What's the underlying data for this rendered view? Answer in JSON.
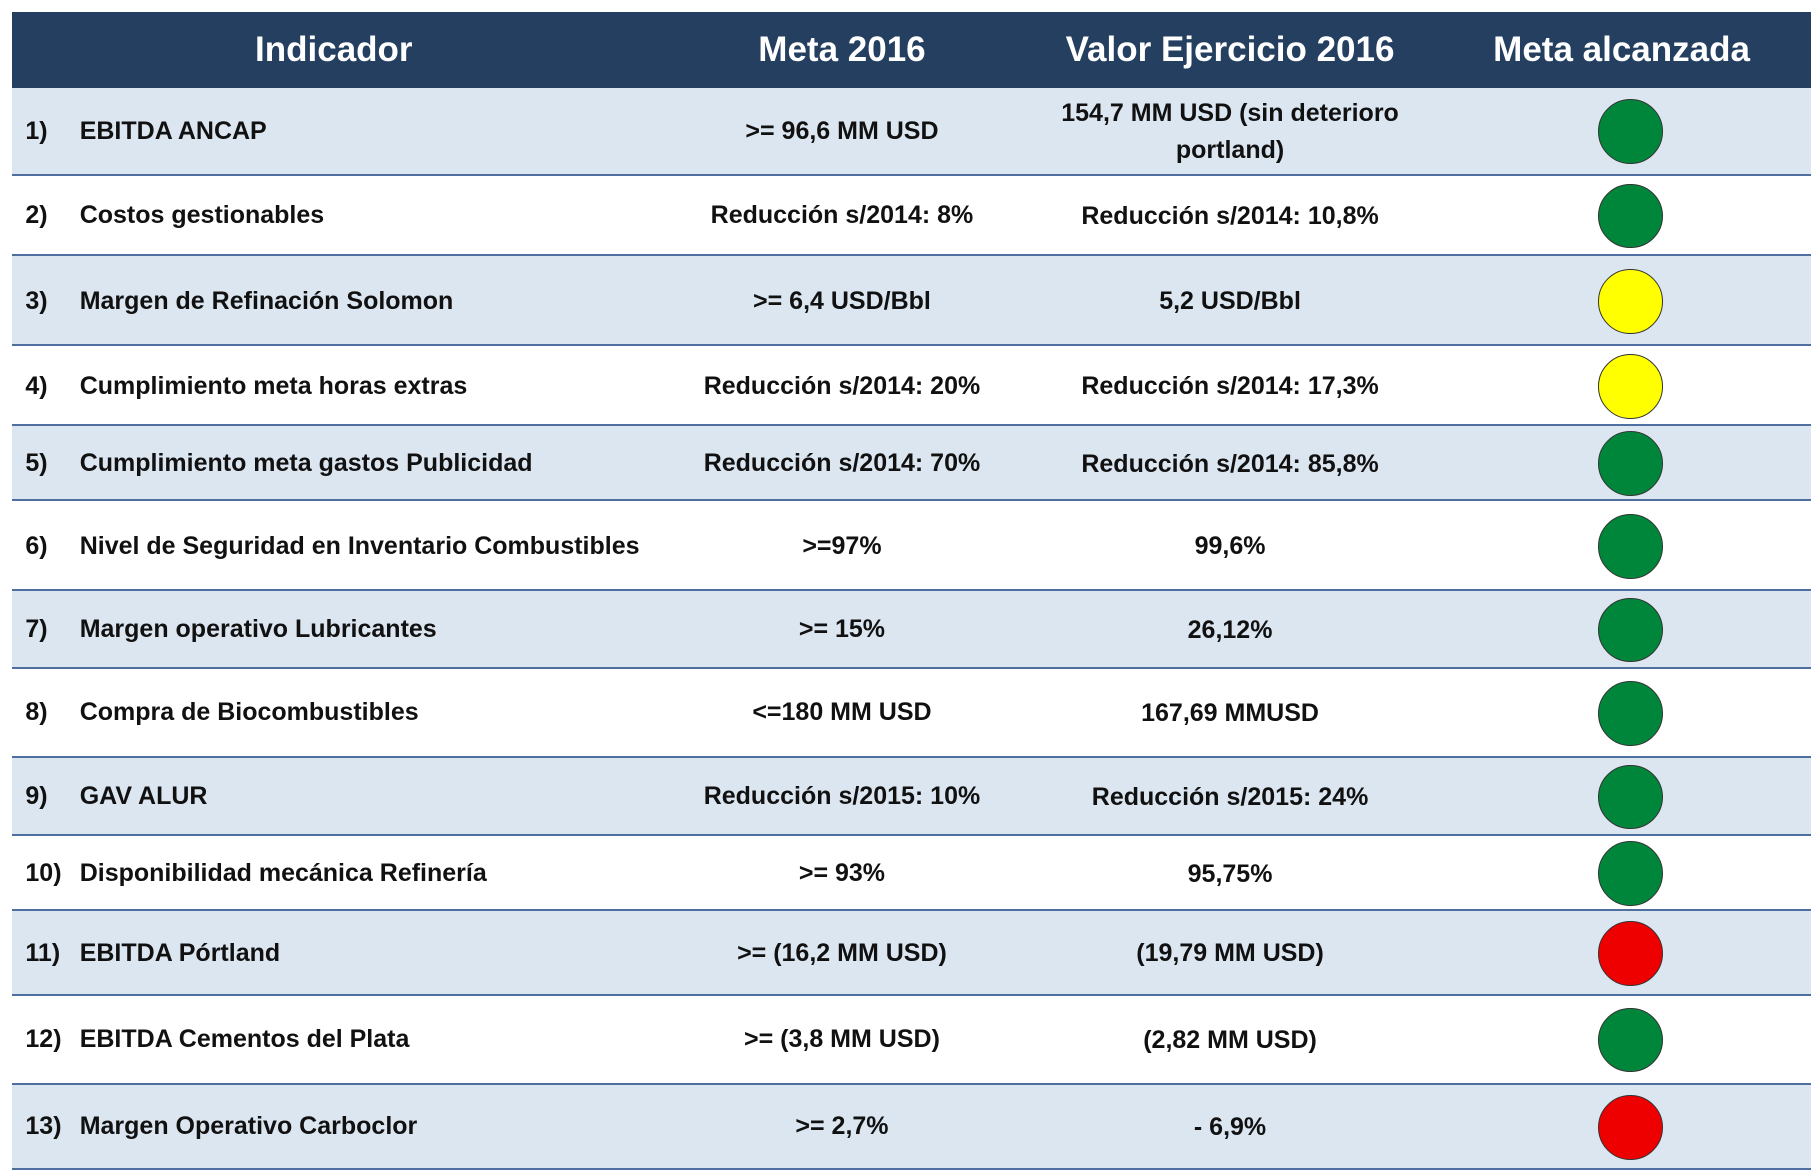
{
  "table": {
    "header": [
      "Indicador",
      "Meta 2016",
      "Valor Ejercicio 2016",
      "Meta alcanzada"
    ],
    "rows": [
      {
        "number": "1)",
        "indicator": "EBITDA ANCAP",
        "target": ">= 96,6 MM USD",
        "actual": "154,7  MM USD (sin deterioro portland)",
        "color": "#00863a"
      },
      {
        "number": "2)",
        "indicator": "Costos gestionables",
        "target": "Reducción s/2014: 8%",
        "actual": "Reducción s/2014: 10,8%",
        "color": "#00863a"
      },
      {
        "number": "3)",
        "indicator": "Margen de Refinación Solomon",
        "target": ">= 6,4 USD/Bbl",
        "actual": "5,2 USD/Bbl",
        "color": "#ffff00"
      },
      {
        "number": "4)",
        "indicator": "Cumplimiento meta horas  extras",
        "target": "Reducción s/2014:  20%",
        "actual": "Reducción s/2014:  17,3%",
        "color": "#ffff00"
      },
      {
        "number": "5)",
        "indicator": "Cumplimiento meta gastos Publicidad",
        "target": "Reducción s/2014:  70%",
        "actual": "Reducción s/2014:  85,8%",
        "color": "#00863a"
      },
      {
        "number": "6)",
        "indicator": "Nivel de Seguridad en Inventario Combustibles",
        "target": ">=97%",
        "actual": "99,6%",
        "color": "#00863a"
      },
      {
        "number": "7)",
        "indicator": "Margen operativo Lubricantes",
        "target": ">= 15%",
        "actual": "26,12%",
        "color": "#00863a"
      },
      {
        "number": "8)",
        "indicator": "Compra de Biocombustibles",
        "target": "<=180 MM USD",
        "actual": "167,69 MMUSD",
        "color": "#00863a"
      },
      {
        "number": "9)",
        "indicator": "GAV ALUR",
        "target": "Reducción s/2015: 10%",
        "actual": "Reducción s/2015: 24%",
        "color": "#00863a"
      },
      {
        "number": "10)",
        "indicator": "Disponibilidad mecánica Refinería",
        "target": ">= 93%",
        "actual": "95,75%",
        "color": "#00863a"
      },
      {
        "number": "11)",
        "indicator": "EBITDA Pórtland",
        "target": ">= (16,2 MM USD)",
        "actual": "(19,79 MM USD)",
        "color": "#ee0000"
      },
      {
        "number": "12)",
        "indicator": "EBITDA Cementos del Plata",
        "target": ">= (3,8 MM USD)",
        "actual": "(2,82 MM USD)",
        "color": "#00863a"
      },
      {
        "number": "13)",
        "indicator": "Margen Operativo Carboclor",
        "target": ">= 2,7%",
        "actual": "- 6,9%",
        "color": "#ee0000"
      }
    ]
  }
}
